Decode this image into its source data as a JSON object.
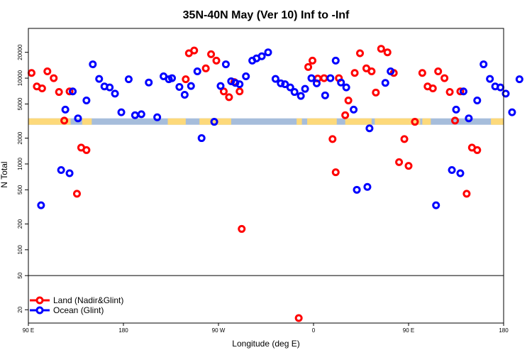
{
  "chart_data": {
    "type": "scatter",
    "title": "35N-40N May (Ver 10)   Inf to -Inf",
    "xlabel": "Longitude (deg E)",
    "ylabel": "N Total",
    "x_ticks": [
      {
        "value": 90,
        "label": "90 E"
      },
      {
        "value": 180,
        "label": "180"
      },
      {
        "value": 270,
        "label": "90 W"
      },
      {
        "value": 360,
        "label": "0"
      },
      {
        "value": 450,
        "label": "90 E"
      },
      {
        "value": 540,
        "label": "180"
      }
    ],
    "y_ticks": [
      20,
      50,
      100,
      200,
      500,
      1000,
      2000,
      5000,
      10000,
      20000
    ],
    "xlim": [
      90,
      540
    ],
    "ylim": [
      14,
      38000
    ],
    "y_scale": "log",
    "legend_position": "bottom-left",
    "series": [
      {
        "name": "Land (Nadir&Glint)",
        "color": "#ff0000",
        "points": [
          [
            93,
            11500
          ],
          [
            98,
            8000
          ],
          [
            103,
            7600
          ],
          [
            108,
            12000
          ],
          [
            114,
            10000
          ],
          [
            119,
            6900
          ],
          [
            124,
            3200
          ],
          [
            129,
            7000
          ],
          [
            136,
            450
          ],
          [
            140,
            1550
          ],
          [
            145,
            1450
          ],
          [
            239,
            9700
          ],
          [
            242,
            19500
          ],
          [
            247,
            21000
          ],
          [
            258,
            13000
          ],
          [
            263,
            19000
          ],
          [
            268,
            16000
          ],
          [
            275,
            7000
          ],
          [
            280,
            6000
          ],
          [
            285,
            9000
          ],
          [
            290,
            7000
          ],
          [
            292,
            175
          ],
          [
            346,
            16
          ],
          [
            355,
            13500
          ],
          [
            359,
            16000
          ],
          [
            364,
            9900
          ],
          [
            370,
            10000
          ],
          [
            378,
            1950
          ],
          [
            381,
            800
          ],
          [
            384,
            10000
          ],
          [
            390,
            3700
          ],
          [
            393,
            5500
          ],
          [
            399,
            11500
          ],
          [
            404,
            19500
          ],
          [
            410,
            13000
          ],
          [
            415,
            12000
          ],
          [
            419,
            6800
          ],
          [
            424,
            22000
          ],
          [
            430,
            20000
          ],
          [
            436,
            11500
          ],
          [
            441,
            1050
          ],
          [
            446,
            1950
          ],
          [
            450,
            950
          ],
          [
            456,
            3100
          ],
          [
            463,
            11500
          ],
          [
            468,
            8000
          ],
          [
            473,
            7600
          ],
          [
            478,
            12000
          ],
          [
            484,
            10000
          ],
          [
            489,
            6900
          ],
          [
            494,
            3200
          ],
          [
            499,
            7000
          ],
          [
            505,
            450
          ],
          [
            510,
            1550
          ],
          [
            515,
            1450
          ]
        ]
      },
      {
        "name": "Ocean (Glint)",
        "color": "#0000ff",
        "points": [
          [
            102,
            330
          ],
          [
            121,
            850
          ],
          [
            125,
            4300
          ],
          [
            129,
            780
          ],
          [
            132,
            7000
          ],
          [
            137,
            3400
          ],
          [
            145,
            5500
          ],
          [
            151,
            14500
          ],
          [
            157,
            9800
          ],
          [
            162,
            8000
          ],
          [
            167,
            7800
          ],
          [
            172,
            6600
          ],
          [
            178,
            4000
          ],
          [
            185,
            9700
          ],
          [
            191,
            3700
          ],
          [
            197,
            3800
          ],
          [
            204,
            8900
          ],
          [
            212,
            3500
          ],
          [
            218,
            10500
          ],
          [
            223,
            9700
          ],
          [
            226,
            10000
          ],
          [
            233,
            7900
          ],
          [
            238,
            6400
          ],
          [
            244,
            8100
          ],
          [
            250,
            12000
          ],
          [
            254,
            2000
          ],
          [
            266,
            3100
          ],
          [
            272,
            8100
          ],
          [
            277,
            14500
          ],
          [
            282,
            9200
          ],
          [
            286,
            8800
          ],
          [
            290,
            8500
          ],
          [
            296,
            10500
          ],
          [
            302,
            16000
          ],
          [
            306,
            17000
          ],
          [
            311,
            18000
          ],
          [
            317,
            20000
          ],
          [
            324,
            9800
          ],
          [
            329,
            8700
          ],
          [
            333,
            8500
          ],
          [
            338,
            7800
          ],
          [
            342,
            6900
          ],
          [
            348,
            6200
          ],
          [
            352,
            7500
          ],
          [
            358,
            10000
          ],
          [
            363,
            8700
          ],
          [
            371,
            6300
          ],
          [
            376,
            10000
          ],
          [
            381,
            16000
          ],
          [
            386,
            8900
          ],
          [
            391,
            7800
          ],
          [
            398,
            4300
          ],
          [
            401,
            500
          ],
          [
            411,
            540
          ],
          [
            413,
            2600
          ],
          [
            428,
            8800
          ],
          [
            433,
            12000
          ],
          [
            476,
            330
          ],
          [
            491,
            850
          ],
          [
            495,
            4300
          ],
          [
            499,
            780
          ],
          [
            502,
            7000
          ],
          [
            507,
            3400
          ],
          [
            515,
            5500
          ],
          [
            521,
            14500
          ],
          [
            527,
            9800
          ],
          [
            532,
            8000
          ],
          [
            537,
            7800
          ],
          [
            542,
            6600
          ],
          [
            548,
            4000
          ],
          [
            555,
            9700
          ]
        ]
      }
    ]
  }
}
